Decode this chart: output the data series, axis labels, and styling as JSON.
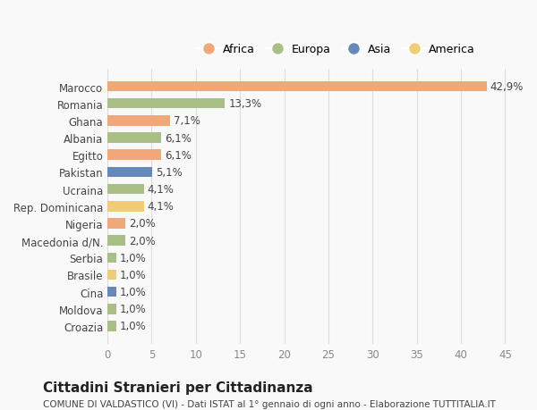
{
  "countries": [
    "Croazia",
    "Moldova",
    "Cina",
    "Brasile",
    "Serbia",
    "Macedonia d/N.",
    "Nigeria",
    "Rep. Dominicana",
    "Ucraina",
    "Pakistan",
    "Egitto",
    "Albania",
    "Ghana",
    "Romania",
    "Marocco"
  ],
  "values": [
    1.0,
    1.0,
    1.0,
    1.0,
    1.0,
    2.0,
    2.0,
    4.1,
    4.1,
    5.1,
    6.1,
    6.1,
    7.1,
    13.3,
    42.9
  ],
  "labels": [
    "1,0%",
    "1,0%",
    "1,0%",
    "1,0%",
    "1,0%",
    "2,0%",
    "2,0%",
    "4,1%",
    "4,1%",
    "5,1%",
    "6,1%",
    "6,1%",
    "7,1%",
    "13,3%",
    "42,9%"
  ],
  "continents": [
    "Europa",
    "Europa",
    "Asia",
    "America",
    "Europa",
    "Europa",
    "Africa",
    "America",
    "Europa",
    "Asia",
    "Africa",
    "Europa",
    "Africa",
    "Europa",
    "Africa"
  ],
  "continent_colors": {
    "Africa": "#F0A878",
    "Europa": "#AABF88",
    "Asia": "#6688BB",
    "America": "#F0CC78"
  },
  "legend_order": [
    "Africa",
    "Europa",
    "Asia",
    "America"
  ],
  "title": "Cittadini Stranieri per Cittadinanza",
  "subtitle": "COMUNE DI VALDASTICO (VI) - Dati ISTAT al 1° gennaio di ogni anno - Elaborazione TUTTITALIA.IT",
  "xlim": [
    0,
    47
  ],
  "xticks": [
    0,
    5,
    10,
    15,
    20,
    25,
    30,
    35,
    40,
    45
  ],
  "background_color": "#f9f9f9",
  "grid_color": "#dddddd",
  "bar_height": 0.6,
  "label_fontsize": 8.5,
  "tick_fontsize": 8.5,
  "title_fontsize": 11,
  "subtitle_fontsize": 7.5
}
